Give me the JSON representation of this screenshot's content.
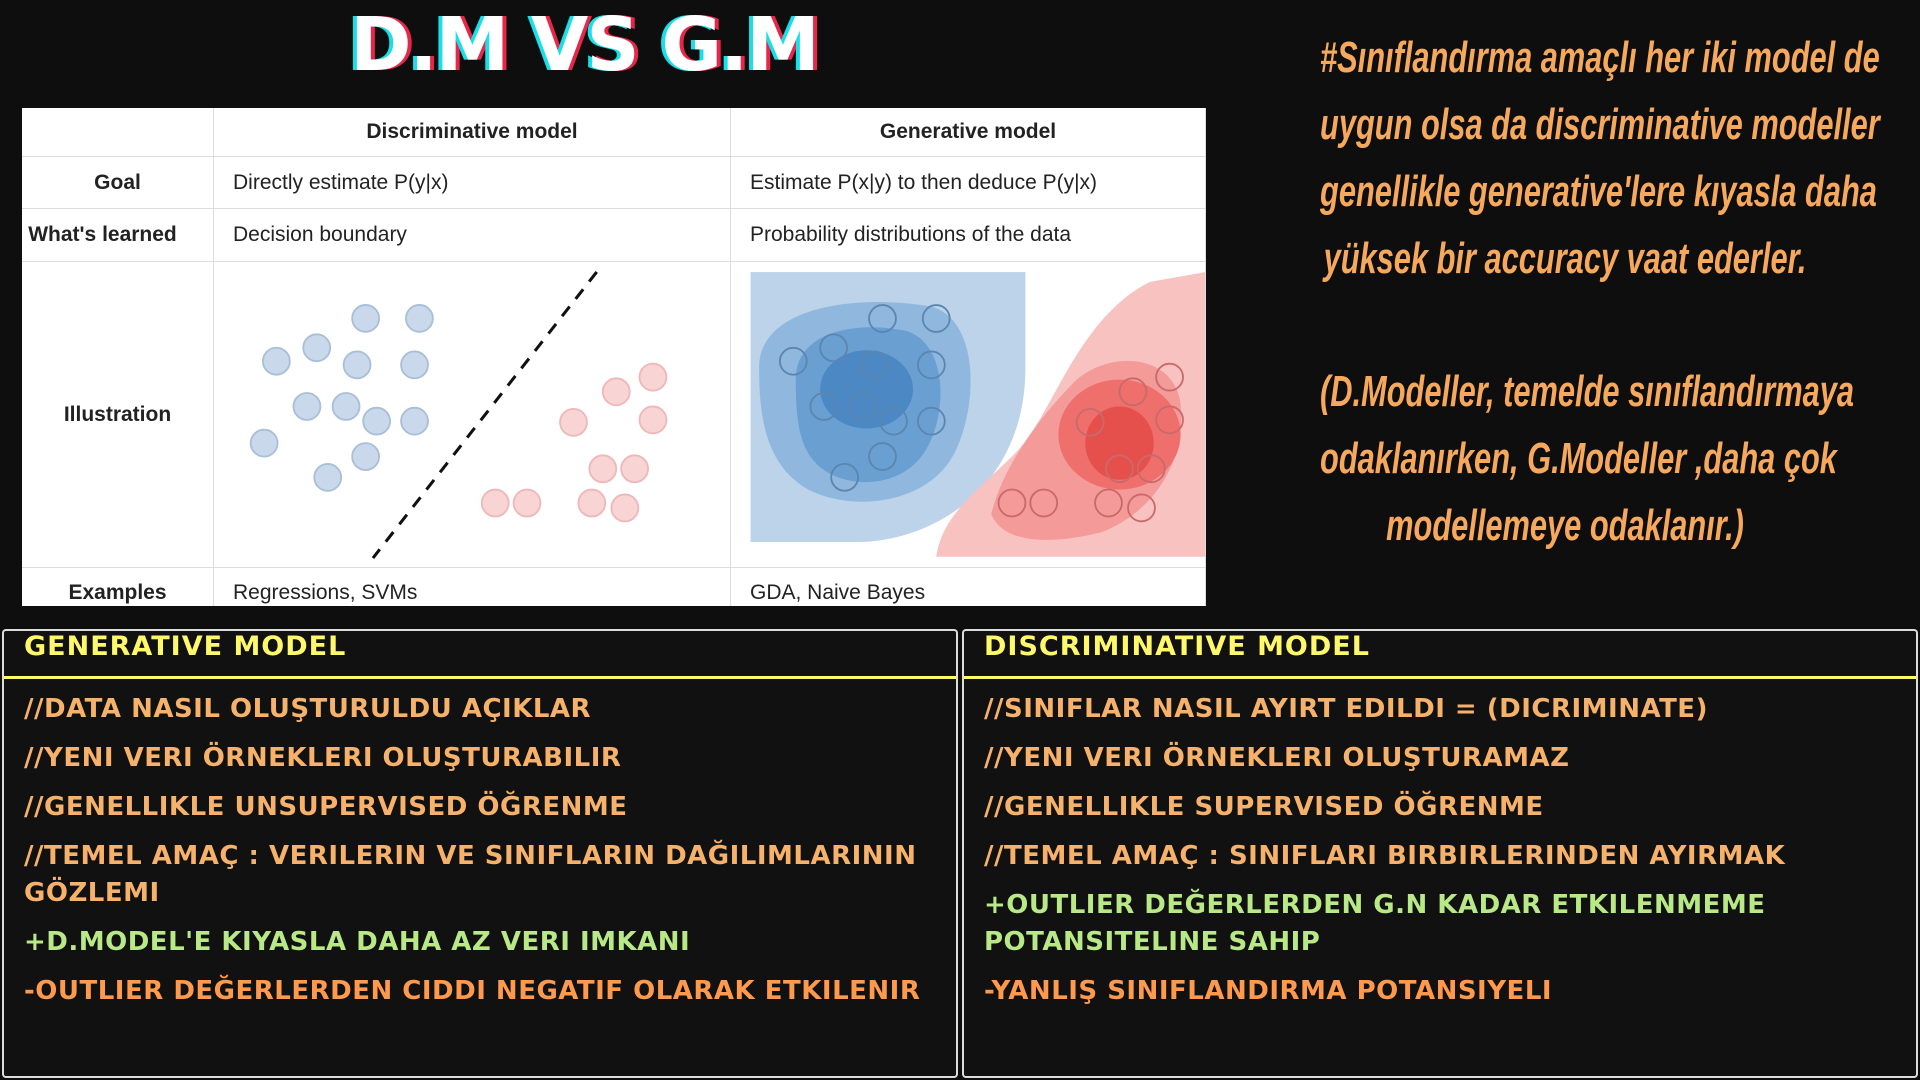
{
  "title": "D.M VS G.M",
  "description": {
    "paragraphs": [
      [
        "#Sınıflandırma amaçlı her iki model de",
        "uygun olsa da discriminative modeller",
        "genellikle generative'lere kıyasla daha",
        "yüksek bir accuracy vaat ederler."
      ],
      [
        "(D.Modeller,  temelde sınıflandırmaya",
        "odaklanırken, G.Modeller ,daha çok",
        "modellemeye odaklanır.)"
      ]
    ]
  },
  "table": {
    "headers": [
      "Discriminative model",
      "Generative model"
    ],
    "rows": [
      {
        "label": "Goal",
        "cells": [
          "Directly estimate P(y|x)",
          "Estimate P(x|y) to then deduce P(y|x)"
        ]
      },
      {
        "label": "What's learned",
        "cells": [
          "Decision boundary",
          "Probability distributions of the data"
        ]
      },
      {
        "label": "Illustration"
      },
      {
        "label": "Examples",
        "cells": [
          "Regressions, SVMs",
          "GDA, Naive Bayes"
        ]
      }
    ]
  },
  "panels": [
    {
      "title": "GENERATIVE MODEL",
      "items": [
        {
          "text": "//DATA NASIL OLUŞTURULDU AÇIKLAR",
          "color": "#f6b26b"
        },
        {
          "text": "//YENI VERI  ÖRNEKLERI OLUŞTURABILIR",
          "color": "#f6b26b"
        },
        {
          "text": "//GENELLIKLE  UNSUPERVISED  ÖĞRENME",
          "color": "#f6b26b"
        },
        {
          "text": "//TEMEL AMAÇ : VERILERIN VE SINIFLARIN DAĞILIMLARININ GÖZLEMI",
          "color": "#f6b26b"
        },
        {
          "text": "+D.MODEL'E KIYASLA DAHA AZ VERI IMKANI",
          "color": "#b8e986"
        },
        {
          "text": "-OUTLIER DEĞERLERDEN CIDDI NEGATIF OLARAK ETKILENIR",
          "color": "#ff9a4d"
        }
      ]
    },
    {
      "title": "DISCRIMINATIVE MODEL",
      "items": [
        {
          "text": "//SINIFLAR NASIL AYIRT EDILDI = (DICRIMINATE)",
          "color": "#f6b26b"
        },
        {
          "text": "//YENI VERI  ÖRNEKLERI OLUŞTURAMAZ",
          "color": "#f6b26b"
        },
        {
          "text": "//GENELLIKLE  SUPERVISED  ÖĞRENME",
          "color": "#f6b26b"
        },
        {
          "text": "//TEMEL AMAÇ : SINIFLARI BIRBIRLERINDEN AYIRMAK",
          "color": "#f6b26b"
        },
        {
          "text": "+OUTLIER DEĞERLERDEN G.N KADAR ETKILENMEME POTANSITELINE SAHIP",
          "color": "#b8e986"
        },
        {
          "text": "-YANLIŞ SINIFLANDIRMA POTANSIYELI",
          "color": "#ff9a4d"
        }
      ]
    }
  ]
}
